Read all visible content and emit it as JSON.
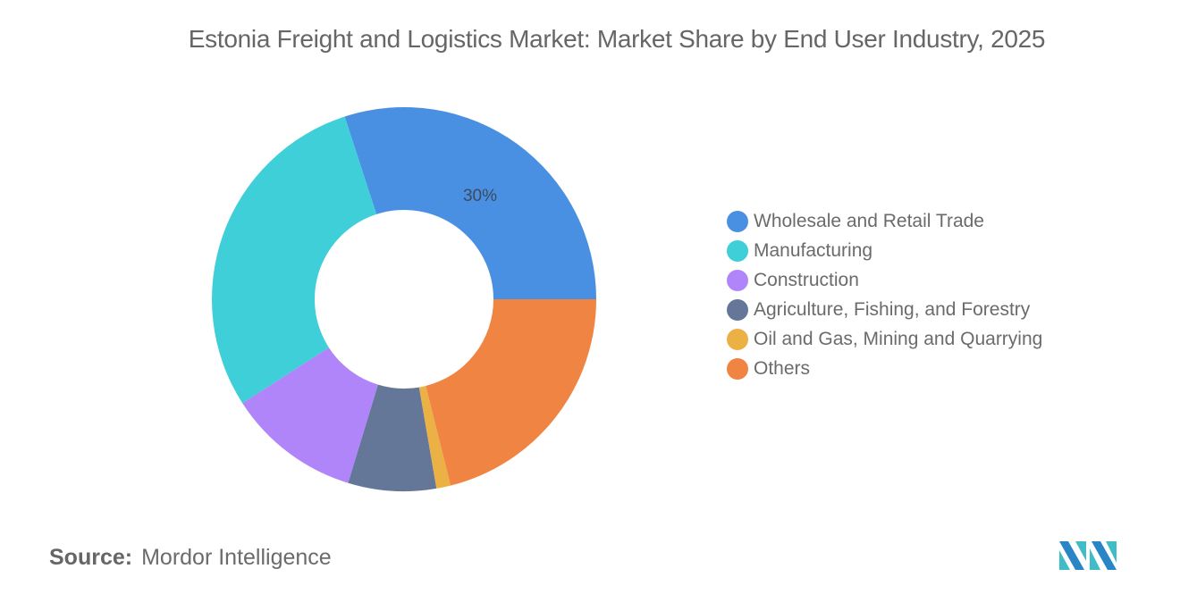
{
  "title": "Estonia Freight and Logistics Market: Market Share by End User Industry, 2025",
  "source": {
    "label": "Source:",
    "value": "Mordor Intelligence"
  },
  "logo": {
    "icon": "mordor-intelligence-logo-icon"
  },
  "chart_data": {
    "type": "pie",
    "subtype": "donut",
    "title": "Estonia Freight and Logistics Market: Market Share by End User Industry, 2025",
    "categories": [
      "Wholesale and Retail Trade",
      "Manufacturing",
      "Construction",
      "Agriculture, Fishing, and Forestry",
      "Oil and Gas, Mining and Quarrying",
      "Others"
    ],
    "values": [
      30,
      29.1,
      11.2,
      7.4,
      1.2,
      21.1
    ],
    "colors": [
      "#4a90e2",
      "#3ecfd8",
      "#b185fa",
      "#647799",
      "#ecb144",
      "#f08443"
    ],
    "data_labels": [
      {
        "category": "Wholesale and Retail Trade",
        "text": "30%"
      }
    ],
    "legend_position": "right",
    "start_angle_deg": 90,
    "direction": "counterclockwise-from-3-oclock"
  },
  "legend": {
    "items": [
      {
        "label": "Wholesale and Retail Trade",
        "color": "#4a90e2"
      },
      {
        "label": "Manufacturing",
        "color": "#3ecfd8"
      },
      {
        "label": "Construction",
        "color": "#b185fa"
      },
      {
        "label": "Agriculture, Fishing, and Forestry",
        "color": "#647799"
      },
      {
        "label": "Oil and Gas, Mining and Quarrying",
        "color": "#ecb144"
      },
      {
        "label": "Others",
        "color": "#f08443"
      }
    ]
  }
}
